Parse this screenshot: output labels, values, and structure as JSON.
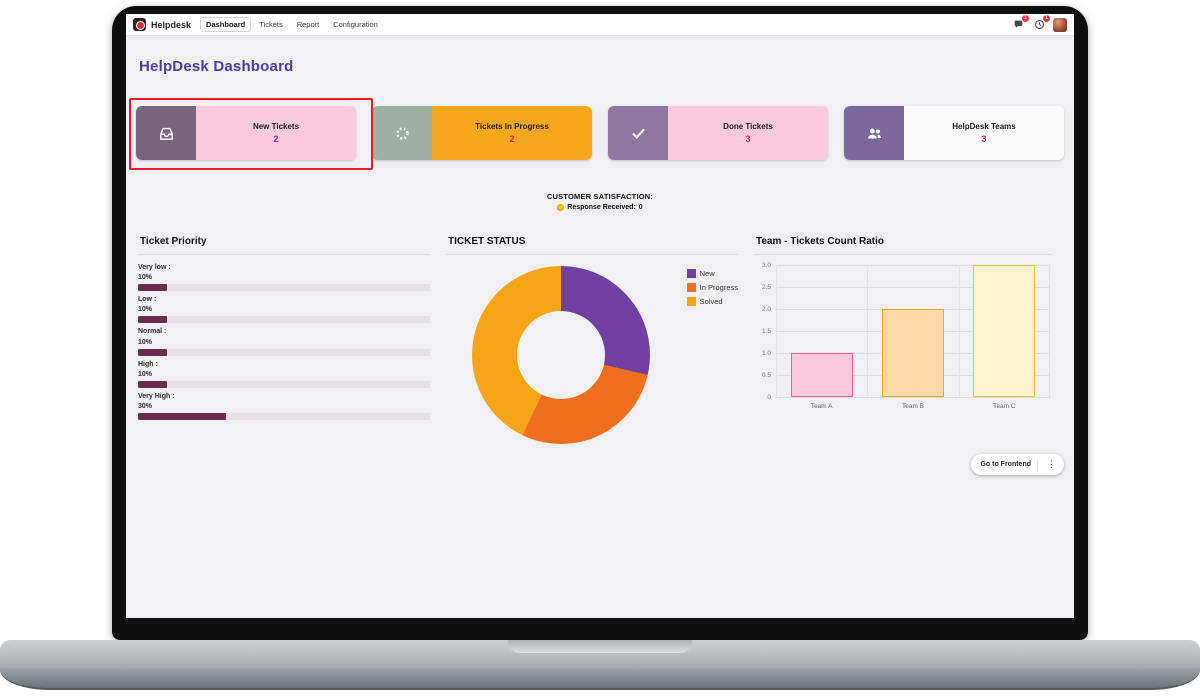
{
  "navbar": {
    "app_name": "Helpdesk",
    "menu": [
      {
        "label": "Dashboard",
        "active": true
      },
      {
        "label": "Tickets",
        "active": false
      },
      {
        "label": "Report",
        "active": false
      },
      {
        "label": "Configuration",
        "active": false
      }
    ],
    "messages_badge": "1",
    "activities_badge": "1"
  },
  "page_title": "HelpDesk Dashboard",
  "colors": {
    "title": "#4c3ca0",
    "annotation": "#ec1c24",
    "content_bg": "#f0eff1"
  },
  "kpi_cards": [
    {
      "title": "New Tickets",
      "count": "2",
      "icon": "inbox-icon",
      "icon_bg": "#77657f",
      "body_bg": "#f9c9de",
      "count_color": "#8e2f9e",
      "highlighted": true
    },
    {
      "title": "Tickets In Progress",
      "count": "2",
      "icon": "spinner-icon",
      "icon_bg": "#9fafa6",
      "body_bg": "#f5a81c",
      "count_color": "#d81b60",
      "highlighted": false
    },
    {
      "title": "Done Tickets",
      "count": "3",
      "icon": "check-icon",
      "icon_bg": "#91779f",
      "body_bg": "#f9c9de",
      "count_color": "#d81b60",
      "highlighted": false
    },
    {
      "title": "HelpDesk Teams",
      "count": "3",
      "icon": "team-icon",
      "icon_bg": "#7b699c",
      "body_bg": "#fafafa",
      "count_color": "#d81b60",
      "highlighted": false
    }
  ],
  "satisfaction": {
    "heading": "CUSTOMER SATISFACTION:",
    "label": "Response Received:",
    "value": "0"
  },
  "priority": {
    "title": "Ticket Priority",
    "bar_color": "#6e2b52",
    "track_color": "#e6e0ea",
    "items": [
      {
        "label": "Very low :",
        "pct_label": "10%",
        "value": 10
      },
      {
        "label": "Low :",
        "pct_label": "10%",
        "value": 10
      },
      {
        "label": "Normal :",
        "pct_label": "10%",
        "value": 10
      },
      {
        "label": "High :",
        "pct_label": "10%",
        "value": 10
      },
      {
        "label": "Very High :",
        "pct_label": "30%",
        "value": 30
      }
    ]
  },
  "chart_data": [
    {
      "type": "pie",
      "title": "TICKET STATUS",
      "labels": [
        "New",
        "In Progress",
        "Solved"
      ],
      "values": [
        2,
        2,
        3
      ],
      "colors": [
        "#7040a0",
        "#f06f1f",
        "#f6a519"
      ],
      "hole": 0.49,
      "legend_position": "right"
    },
    {
      "type": "bar",
      "title": "Team - Tickets Count Ratio",
      "categories": [
        "Team A",
        "Team B",
        "Team C"
      ],
      "values": [
        1,
        2,
        3
      ],
      "bar_fill": [
        "#fbc9dd",
        "#fcd9a6",
        "#fdf2cb"
      ],
      "bar_border": [
        "#f06292",
        "#f5a623",
        "#eec92e"
      ],
      "ylim": [
        0,
        3
      ],
      "yticks": [
        "3.0",
        "2.5",
        "2.0",
        "1.5",
        "1.0",
        "0.5",
        "0"
      ],
      "grid": true
    }
  ],
  "frontend_button": {
    "label": "Go to Frontend",
    "kebab": "⋮"
  }
}
